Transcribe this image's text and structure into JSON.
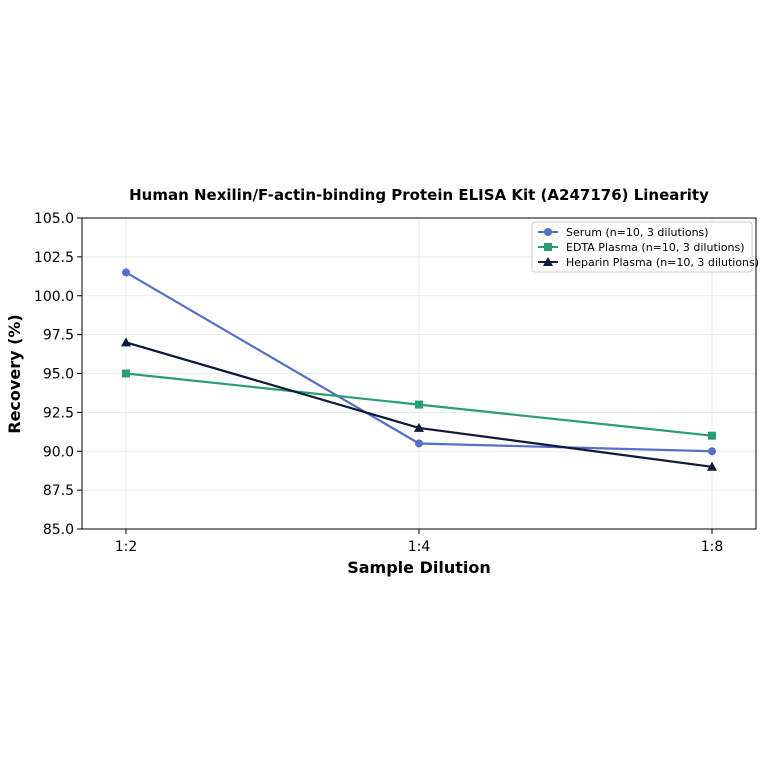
{
  "chart_data": {
    "type": "line",
    "title": "Human Nexilin/F-actin-binding Protein ELISA Kit (A247176) Linearity",
    "xlabel": "Sample Dilution",
    "ylabel": "Recovery (%)",
    "categories": [
      "1:2",
      "1:4",
      "1:8"
    ],
    "ylim": [
      85.0,
      105.0
    ],
    "yticks": [
      "85.0",
      "87.5",
      "90.0",
      "92.5",
      "95.0",
      "97.5",
      "100.0",
      "102.5",
      "105.0"
    ],
    "grid": true,
    "legend_position": "top-right",
    "series": [
      {
        "name": "Serum (n=10, 3 dilutions)",
        "values": [
          101.5,
          90.5,
          90.0
        ],
        "color": "#5470c6",
        "marker": "circle"
      },
      {
        "name": "EDTA Plasma (n=10, 3 dilutions)",
        "values": [
          95.0,
          93.0,
          91.0
        ],
        "color": "#2a9d74",
        "marker": "square"
      },
      {
        "name": "Heparin Plasma (n=10, 3 dilutions)",
        "values": [
          97.0,
          91.5,
          89.0
        ],
        "color": "#0f1a3a",
        "marker": "triangle"
      }
    ]
  }
}
